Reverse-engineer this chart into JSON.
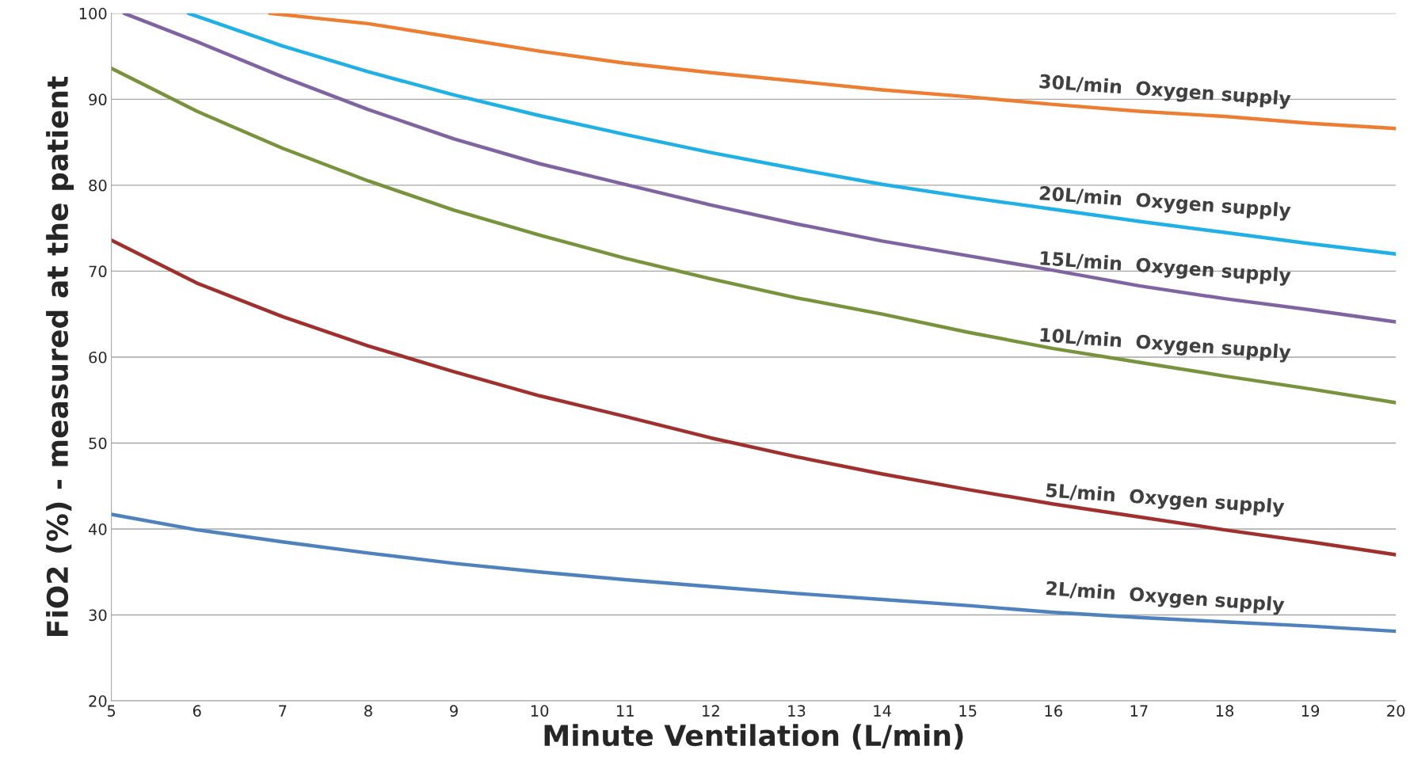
{
  "chart_data": {
    "type": "line",
    "xlabel": "Minute Ventilation (L/min)",
    "ylabel": "FiO2 (%) - measured at the patient",
    "xlim": [
      5,
      20
    ],
    "ylim": [
      20,
      100
    ],
    "xticks": [
      5,
      6,
      7,
      8,
      9,
      10,
      11,
      12,
      13,
      14,
      15,
      16,
      17,
      18,
      19,
      20
    ],
    "yticks": [
      20,
      30,
      40,
      50,
      60,
      70,
      80,
      90,
      100
    ],
    "grid": "y",
    "legend": false,
    "marker": "none",
    "line_style": "solid",
    "series": [
      {
        "name": "30L/min  Oxygen supply",
        "color": "#ed7d31",
        "x": [
          6.85,
          8,
          9,
          10,
          11,
          12,
          13,
          14,
          15,
          16,
          17,
          18,
          19,
          20
        ],
        "values": [
          100,
          98.8,
          97.2,
          95.6,
          94.2,
          93.1,
          92.1,
          91.1,
          90.3,
          89.4,
          88.6,
          88.0,
          87.2,
          86.6
        ]
      },
      {
        "name": "20L/min  Oxygen supply",
        "color": "#1fb0e6",
        "x": [
          5.9,
          7,
          8,
          9,
          10,
          11,
          12,
          13,
          14,
          15,
          16,
          17,
          18,
          19,
          20
        ],
        "values": [
          100,
          96.2,
          93.2,
          90.5,
          88.1,
          85.9,
          83.8,
          81.9,
          80.1,
          78.6,
          77.2,
          75.8,
          74.5,
          73.2,
          72.0
        ]
      },
      {
        "name": "15L/min  Oxygen supply",
        "color": "#8064a2",
        "x": [
          5.15,
          6,
          7,
          8,
          9,
          10,
          11,
          12,
          13,
          14,
          15,
          16,
          17,
          18,
          19,
          20
        ],
        "values": [
          100,
          96.7,
          92.6,
          88.8,
          85.4,
          82.5,
          80.1,
          77.7,
          75.5,
          73.5,
          71.8,
          70.1,
          68.3,
          66.8,
          65.5,
          64.1
        ]
      },
      {
        "name": "10L/min  Oxygen supply",
        "color": "#77933c",
        "x": [
          5,
          6,
          7,
          8,
          9,
          10,
          11,
          12,
          13,
          14,
          15,
          16,
          17,
          18,
          19,
          20
        ],
        "values": [
          93.6,
          88.6,
          84.3,
          80.5,
          77.1,
          74.2,
          71.5,
          69.1,
          66.9,
          65.0,
          62.9,
          61.0,
          59.4,
          57.8,
          56.3,
          54.7
        ]
      },
      {
        "name": "5L/min  Oxygen supply",
        "color": "#a0302d",
        "x": [
          5,
          6,
          7,
          8,
          9,
          10,
          11,
          12,
          13,
          14,
          15,
          16,
          17,
          18,
          19,
          20
        ],
        "values": [
          73.6,
          68.6,
          64.7,
          61.3,
          58.3,
          55.5,
          53.1,
          50.6,
          48.4,
          46.4,
          44.6,
          42.9,
          41.4,
          39.9,
          38.5,
          37.0
        ]
      },
      {
        "name": "2L/min  Oxygen supply",
        "color": "#4f81bd",
        "x": [
          5,
          6,
          7,
          8,
          9,
          10,
          11,
          12,
          13,
          14,
          15,
          16,
          17,
          18,
          19,
          20
        ],
        "values": [
          41.7,
          39.9,
          38.5,
          37.2,
          36.0,
          35.0,
          34.1,
          33.3,
          32.5,
          31.8,
          31.1,
          30.3,
          29.7,
          29.2,
          28.7,
          28.1
        ]
      }
    ]
  }
}
